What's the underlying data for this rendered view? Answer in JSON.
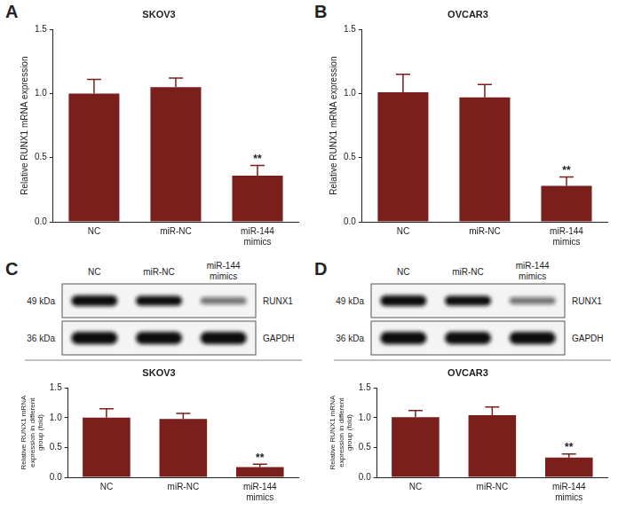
{
  "chart_data": [
    {
      "type": "bar",
      "panel": "A",
      "title": "SKOV3",
      "y_label": "Relative RUNX1 mRNA expression",
      "categories": [
        "NC",
        "miR-NC",
        "miR-144 mimics"
      ],
      "values": [
        1.0,
        1.05,
        0.36
      ],
      "errors": [
        0.11,
        0.07,
        0.08
      ],
      "color": "#7a1f1c",
      "ylim": [
        0,
        1.5
      ],
      "yticks": [
        {
          "value": 0,
          "label": "0.0"
        },
        {
          "value": 0.5,
          "label": "0.5"
        },
        {
          "value": 1,
          "label": "1.0"
        },
        {
          "value": 1.5,
          "label": "1.5"
        }
      ],
      "grid": false,
      "annotations": [
        {
          "category": "miR-144 mimics",
          "text": "**"
        }
      ]
    },
    {
      "type": "bar",
      "panel": "B",
      "title": "OVCAR3",
      "y_label": "Relative RUNX1 mRNA expression",
      "categories": [
        "NC",
        "miR-NC",
        "miR-144 mimics"
      ],
      "values": [
        1.01,
        0.97,
        0.28
      ],
      "errors": [
        0.14,
        0.1,
        0.07
      ],
      "color": "#7a1f1c",
      "ylim": [
        0,
        1.5
      ],
      "yticks": [
        {
          "value": 0,
          "label": "0.0"
        },
        {
          "value": 0.5,
          "label": "0.5"
        },
        {
          "value": 1,
          "label": "1.0"
        },
        {
          "value": 1.5,
          "label": "1.5"
        }
      ],
      "grid": false,
      "annotations": [
        {
          "category": "miR-144 mimics",
          "text": "**"
        }
      ]
    },
    {
      "type": "bar",
      "panel": "C",
      "title": "SKOV3",
      "y_label": "Relative RUNX1 mRNA expression in different group (fold)",
      "categories": [
        "NC",
        "miR-NC",
        "miR-144 mimics"
      ],
      "values": [
        1.0,
        0.98,
        0.17
      ],
      "errors": [
        0.15,
        0.09,
        0.05
      ],
      "color": "#7a1f1c",
      "ylim": [
        0,
        1.5
      ],
      "yticks": [
        {
          "value": 0,
          "label": "0.0"
        },
        {
          "value": 0.5,
          "label": "0.5"
        },
        {
          "value": 1,
          "label": "1.0"
        },
        {
          "value": 1.5,
          "label": "1.5"
        }
      ],
      "grid": false,
      "annotations": [
        {
          "category": "miR-144 mimics",
          "text": "**"
        }
      ]
    },
    {
      "type": "bar",
      "panel": "D",
      "title": "OVCAR3",
      "y_label": "Relative RUNX1 mRNA expression in different group (fold)",
      "categories": [
        "NC",
        "miR-NC",
        "miR-144 mimics"
      ],
      "values": [
        1.01,
        1.04,
        0.33
      ],
      "errors": [
        0.11,
        0.14,
        0.06
      ],
      "color": "#7a1f1c",
      "ylim": [
        0,
        1.5
      ],
      "yticks": [
        {
          "value": 0,
          "label": "0.0"
        },
        {
          "value": 0.5,
          "label": "0.5"
        },
        {
          "value": 1,
          "label": "1.0"
        },
        {
          "value": 1.5,
          "label": "1.5"
        }
      ],
      "grid": false,
      "annotations": [
        {
          "category": "miR-144 mimics",
          "text": "**"
        }
      ]
    }
  ],
  "blots": [
    {
      "panel": "C",
      "lanes": [
        "NC",
        "miR-NC",
        "miR-144 mimics"
      ],
      "rows": [
        {
          "size": "49 kDa",
          "protein": "RUNX1"
        },
        {
          "size": "36 kDa",
          "protein": "GAPDH"
        }
      ]
    },
    {
      "panel": "D",
      "lanes": [
        "NC",
        "miR-NC",
        "miR-144 mimics"
      ],
      "rows": [
        {
          "size": "49 kDa",
          "protein": "RUNX1"
        },
        {
          "size": "36 kDa",
          "protein": "GAPDH"
        }
      ]
    }
  ]
}
